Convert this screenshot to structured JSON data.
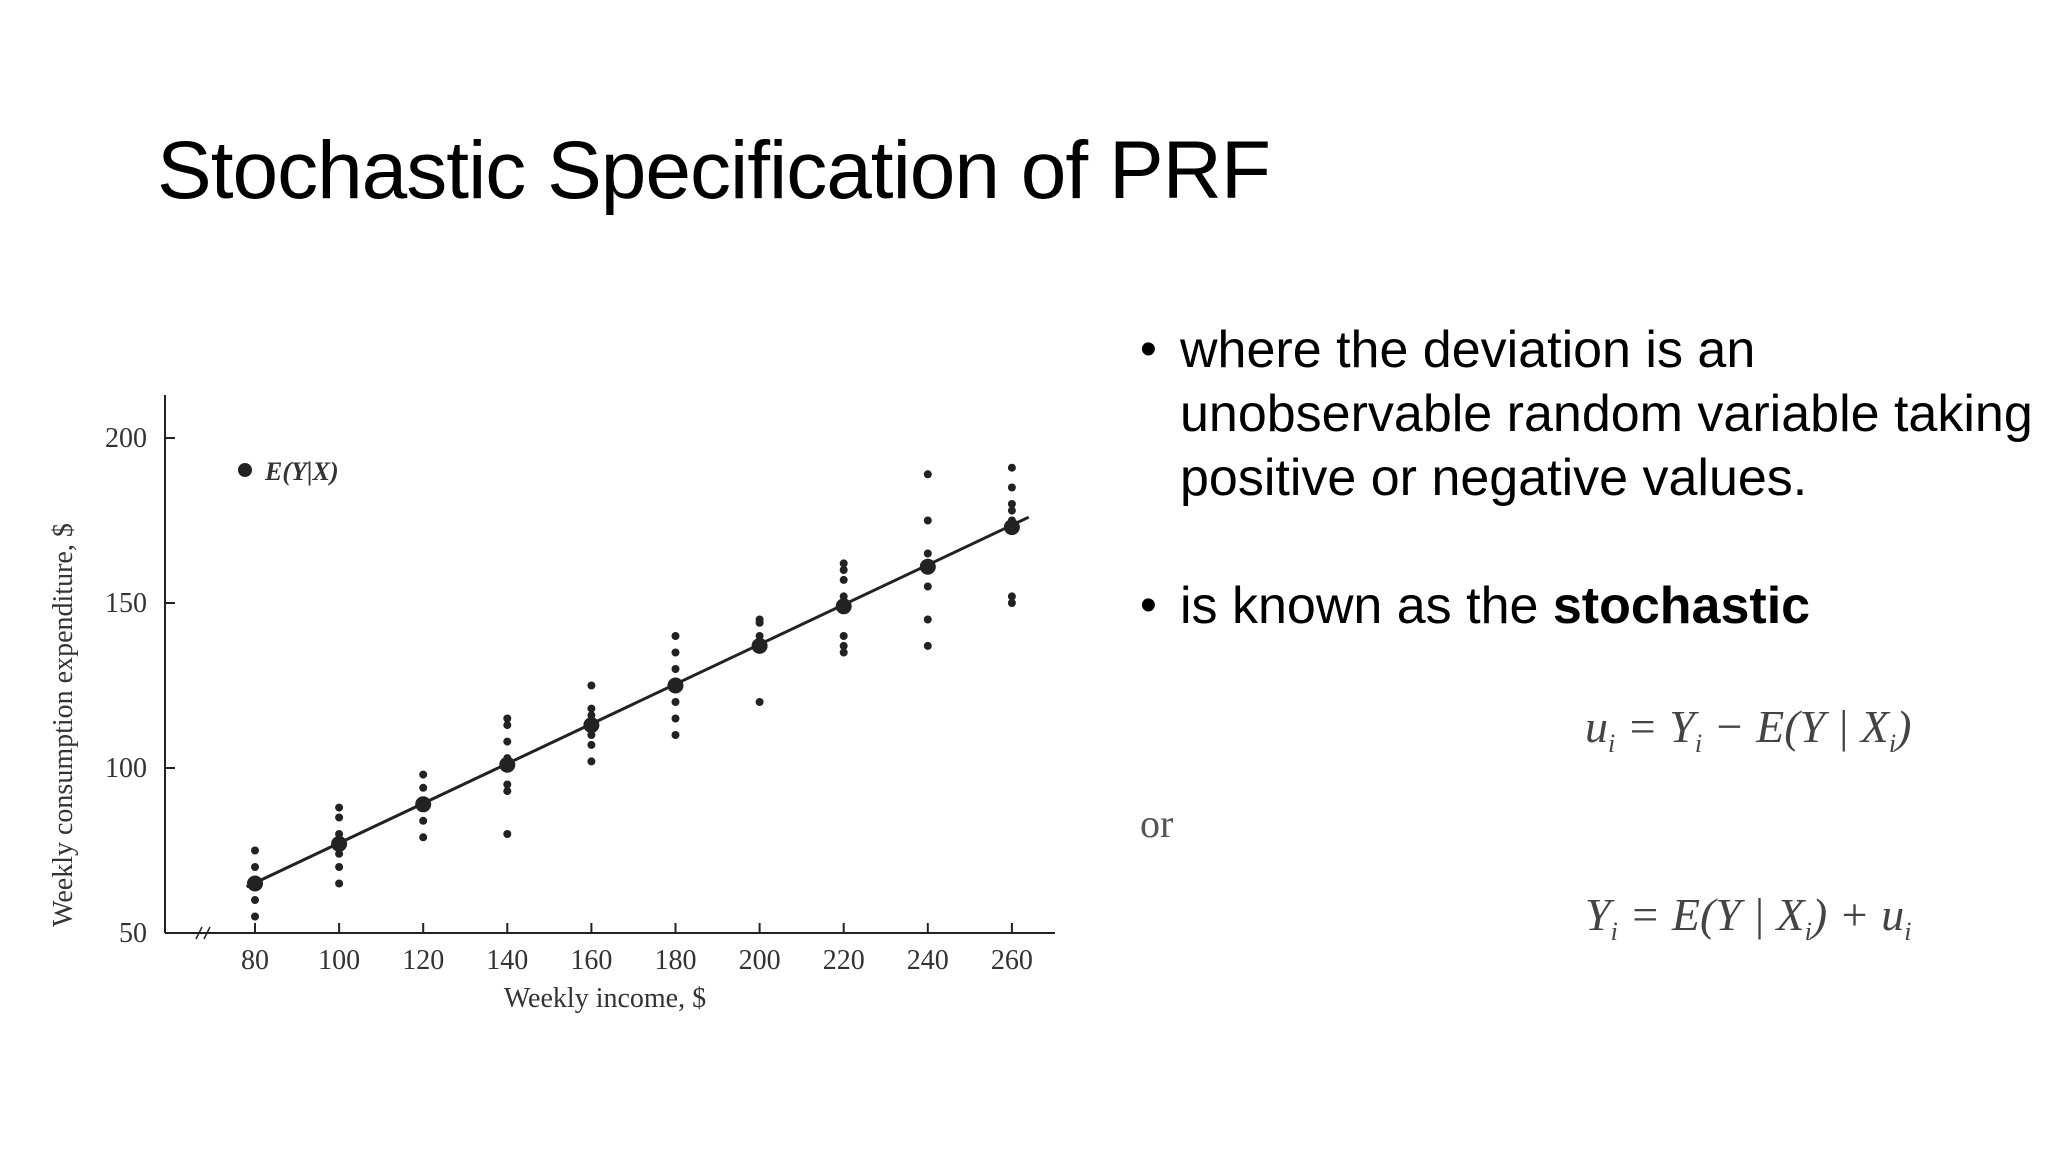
{
  "slide": {
    "title": "Stochastic Specification of PRF",
    "bullets": [
      {
        "text": "where the deviation  is an unobservable random variable taking positive or negative values."
      },
      {
        "text_plain": " is known as the ",
        "text_bold": "stochastic"
      }
    ],
    "equations": {
      "eq1": {
        "lhs_var": "u",
        "lhs_sub": "i",
        "mid": " = Y",
        "mid_sub": "i",
        "rhs": " − E(Y | X",
        "rhs_sub": "i",
        "tail": ")"
      },
      "connector": "or",
      "eq2": {
        "lhs_var": "Y",
        "lhs_sub": "i",
        "mid": " = E(Y | X",
        "mid_sub": "i",
        "rhs": ") + u",
        "rhs_sub": "i",
        "tail": ""
      }
    },
    "bullet_symbol": "•"
  },
  "chart_data": {
    "type": "scatter",
    "xlabel": "Weekly income, $",
    "ylabel": "Weekly consumption expenditure, $",
    "xticks": [
      80,
      100,
      120,
      140,
      160,
      180,
      200,
      220,
      240,
      260
    ],
    "yticks": [
      50,
      100,
      150,
      200
    ],
    "ylim": [
      50,
      200
    ],
    "legend": {
      "label": "E(Y|X)",
      "placement": "top-left"
    },
    "observations": [
      {
        "x": 80,
        "y": [
          55,
          60,
          65,
          70,
          75
        ]
      },
      {
        "x": 100,
        "y": [
          65,
          70,
          74,
          80,
          85,
          88
        ]
      },
      {
        "x": 120,
        "y": [
          79,
          84,
          90,
          94,
          98
        ]
      },
      {
        "x": 140,
        "y": [
          80,
          93,
          95,
          103,
          108,
          113,
          115
        ]
      },
      {
        "x": 160,
        "y": [
          102,
          107,
          110,
          116,
          118,
          125
        ]
      },
      {
        "x": 180,
        "y": [
          110,
          115,
          120,
          130,
          135,
          140
        ]
      },
      {
        "x": 200,
        "y": [
          120,
          136,
          140,
          144,
          145
        ]
      },
      {
        "x": 220,
        "y": [
          135,
          137,
          140,
          152,
          157,
          160,
          162
        ]
      },
      {
        "x": 240,
        "y": [
          137,
          145,
          155,
          165,
          175,
          189
        ]
      },
      {
        "x": 260,
        "y": [
          150,
          152,
          175,
          178,
          180,
          185,
          191
        ]
      }
    ],
    "conditional_means": [
      {
        "x": 80,
        "y": 65
      },
      {
        "x": 100,
        "y": 77
      },
      {
        "x": 120,
        "y": 89
      },
      {
        "x": 140,
        "y": 101
      },
      {
        "x": 160,
        "y": 113
      },
      {
        "x": 180,
        "y": 125
      },
      {
        "x": 200,
        "y": 137
      },
      {
        "x": 220,
        "y": 149
      },
      {
        "x": 240,
        "y": 161
      },
      {
        "x": 260,
        "y": 173
      }
    ],
    "regression_line": {
      "x": [
        78,
        264
      ],
      "y": [
        64,
        176
      ]
    },
    "colors": {
      "ink": "#222222"
    }
  }
}
